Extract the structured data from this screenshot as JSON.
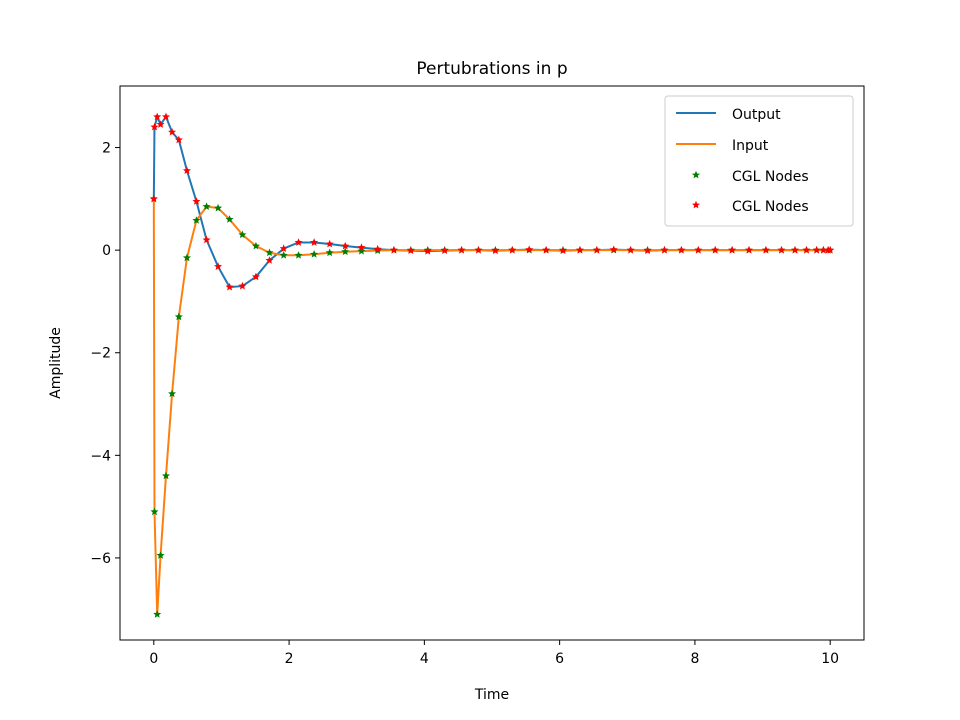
{
  "chart_data": {
    "type": "line",
    "title": "Pertubrations in p",
    "xlabel": "Time",
    "ylabel": "Amplitude",
    "xlim": [
      -0.5,
      10.5
    ],
    "ylim": [
      -7.6,
      3.2
    ],
    "xticks": [
      0,
      2,
      4,
      6,
      8,
      10
    ],
    "yticks": [
      -6,
      -4,
      -2,
      0,
      2
    ],
    "grid": false,
    "legend_position": "top-right",
    "series": [
      {
        "name": "Output",
        "kind": "line",
        "color": "#1f77b4",
        "x": [
          0,
          0.01,
          0.05,
          0.1,
          0.18,
          0.27,
          0.37,
          0.49,
          0.63,
          0.78,
          0.95,
          1.12,
          1.31,
          1.51,
          1.71,
          1.92,
          2.14,
          2.37,
          2.6,
          2.83,
          3.07,
          3.31,
          3.55,
          3.8,
          4.05,
          4.3,
          4.55,
          4.8,
          5.05,
          5.3,
          5.55,
          5.8,
          6.05,
          6.3,
          6.55,
          6.8,
          7.05,
          7.3,
          7.55,
          7.8,
          8.05,
          8.3,
          8.55,
          8.8,
          9.05,
          9.28,
          9.48,
          9.65,
          9.8,
          9.9,
          9.97,
          10.0
        ],
        "y": [
          1.0,
          2.4,
          2.6,
          2.45,
          2.6,
          2.3,
          2.15,
          1.55,
          0.95,
          0.2,
          -0.32,
          -0.72,
          -0.7,
          -0.52,
          -0.2,
          0.03,
          0.15,
          0.15,
          0.12,
          0.08,
          0.05,
          0.02,
          0.0,
          -0.01,
          -0.02,
          -0.01,
          0.0,
          0.0,
          -0.01,
          0.0,
          0.01,
          0.0,
          -0.01,
          0.0,
          0.0,
          0.01,
          0.0,
          -0.01,
          0.0,
          0.0,
          0.0,
          0.0,
          0.0,
          0.0,
          0.0,
          0.0,
          0.0,
          0.0,
          0.0,
          0.0,
          0.0,
          0.0
        ]
      },
      {
        "name": "Input",
        "kind": "line",
        "color": "#ff7f0e",
        "x": [
          0,
          0.01,
          0.05,
          0.1,
          0.18,
          0.27,
          0.37,
          0.49,
          0.63,
          0.78,
          0.95,
          1.12,
          1.31,
          1.51,
          1.71,
          1.92,
          2.14,
          2.37,
          2.6,
          2.83,
          3.07,
          3.31,
          3.55,
          3.8,
          4.05,
          4.3,
          4.55,
          4.8,
          5.05,
          5.3,
          5.55,
          5.8,
          6.05,
          6.3,
          6.55,
          6.8,
          7.05,
          7.3,
          7.55,
          7.8,
          8.05,
          8.3,
          8.55,
          8.8,
          9.05,
          9.28,
          9.48,
          9.65,
          9.8,
          9.9,
          9.97,
          10.0
        ],
        "y": [
          1.0,
          -5.1,
          -7.1,
          -5.95,
          -4.4,
          -2.8,
          -1.3,
          -0.15,
          0.58,
          0.85,
          0.82,
          0.6,
          0.3,
          0.08,
          -0.05,
          -0.1,
          -0.1,
          -0.08,
          -0.05,
          -0.03,
          -0.02,
          -0.01,
          0.0,
          0.0,
          0.0,
          0.0,
          0.0,
          0.0,
          0.0,
          0.0,
          0.0,
          0.0,
          0.0,
          0.0,
          0.0,
          0.0,
          0.0,
          0.0,
          0.0,
          0.0,
          0.0,
          0.0,
          0.0,
          0.0,
          0.0,
          0.0,
          0.0,
          0.0,
          0.0,
          0.0,
          0.0,
          0.0
        ]
      },
      {
        "name": "CGL Nodes",
        "kind": "scatter",
        "color": "#008000",
        "marker": "star",
        "of": "Input"
      },
      {
        "name": "CGL Nodes",
        "kind": "scatter",
        "color": "#ff0000",
        "marker": "star",
        "of": "Output"
      }
    ]
  }
}
